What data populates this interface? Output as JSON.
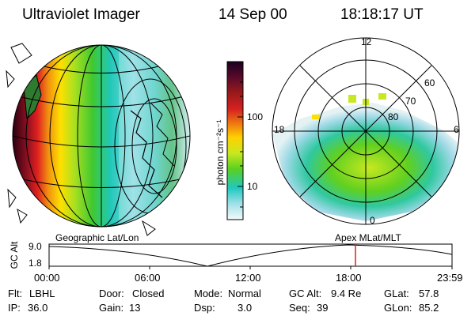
{
  "header": {
    "title": "Ultraviolet Imager",
    "date": "14 Sep 00",
    "time": "18:18:17 UT"
  },
  "colorbar": {
    "label": "photon cm⁻²s⁻¹",
    "ticks": [
      "100",
      "10"
    ],
    "colors": [
      "#1a0020",
      "#5a0a2a",
      "#9a1a1a",
      "#d62020",
      "#f08010",
      "#ffd000",
      "#c8e820",
      "#5ad020",
      "#20c8c0",
      "#a0e0e8",
      "#e8f4f4"
    ]
  },
  "left_panel": {
    "label": "Geographic Lat/Lon"
  },
  "right_panel": {
    "label": "Apex  MLat/MLT",
    "mlt_labels": [
      "12",
      "18",
      "6",
      "0"
    ],
    "lat_labels": [
      "60",
      "70",
      "80"
    ]
  },
  "timeline": {
    "axis_label": "GC Alt",
    "y_ticks": [
      "9.0",
      "1.8"
    ],
    "x_ticks": [
      "00:00",
      "06:00",
      "12:00",
      "18:00",
      "23:59"
    ],
    "marker_color": "#e02020"
  },
  "info": {
    "filter_label": "Flt:",
    "filter": "LBHL",
    "door_label": "Door:",
    "door": "Closed",
    "mode_label": "Mode:",
    "mode": "Normal",
    "gcalt_label": "GC Alt:",
    "gcalt": "9.4 Re",
    "glat_label": "GLat:",
    "glat": "57.8",
    "ip_label": "IP:",
    "ip": "36.0",
    "gain_label": "Gain:",
    "gain": "13",
    "dsp_label": "Dsp:",
    "dsp": "3.0",
    "seq_label": "Seq:",
    "seq": "39",
    "glon_label": "GLon:",
    "glon": "85.2"
  }
}
